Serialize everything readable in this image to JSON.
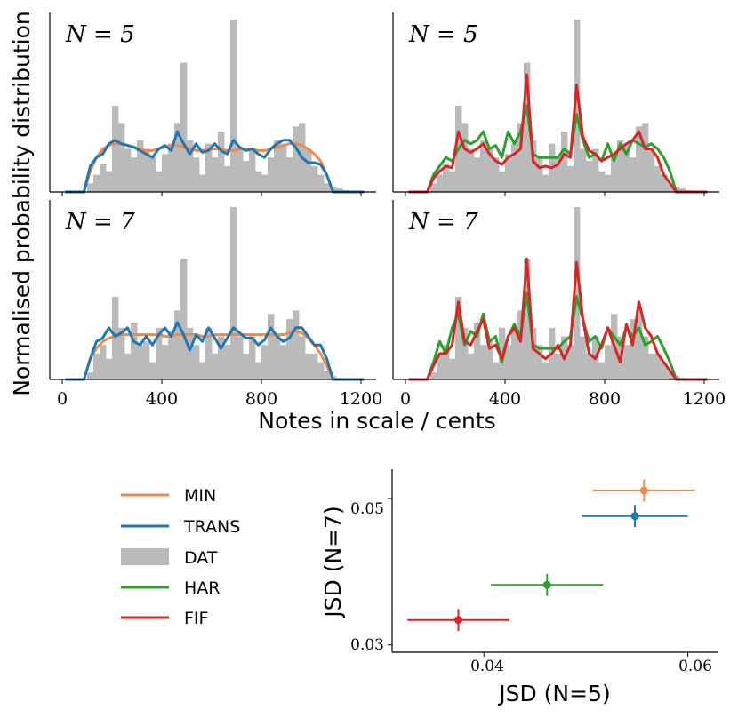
{
  "chart_data": [
    {
      "type": "histogram+line",
      "panel": "top-left",
      "n_label": "N = 5",
      "xlim": [
        -50,
        1250
      ],
      "bins_width": 25,
      "series": [
        "DAT",
        "MIN",
        "TRANS"
      ]
    },
    {
      "type": "histogram+line",
      "panel": "top-right",
      "n_label": "N = 5",
      "xlim": [
        -50,
        1250
      ],
      "series": [
        "DAT",
        "HAR",
        "FIF"
      ]
    },
    {
      "type": "histogram+line",
      "panel": "bottom-left",
      "n_label": "N = 7",
      "xlim": [
        -50,
        1250
      ],
      "series": [
        "DAT",
        "MIN",
        "TRANS"
      ]
    },
    {
      "type": "histogram+line",
      "panel": "bottom-right",
      "n_label": "N = 7",
      "xlim": [
        -50,
        1250
      ],
      "series": [
        "DAT",
        "HAR",
        "FIF"
      ]
    },
    {
      "type": "scatter",
      "panel": "bottom",
      "xlabel": "JSD (N=5)",
      "ylabel": "JSD (N=7)",
      "xlim": [
        0.031,
        0.063
      ],
      "ylim": [
        0.029,
        0.054
      ],
      "xticks": [
        "0.04",
        "0.06"
      ],
      "yticks": [
        "0.03",
        "0.05"
      ],
      "points": [
        {
          "name": "MIN",
          "color": "#f08a4b",
          "x": 0.0557,
          "y": 0.0511,
          "xerr": 0.005,
          "yerr": 0.0015
        },
        {
          "name": "TRANS",
          "color": "#1f77b4",
          "x": 0.0548,
          "y": 0.0476,
          "xerr": 0.0052,
          "yerr": 0.0015
        },
        {
          "name": "HAR",
          "color": "#2ca02c",
          "x": 0.0462,
          "y": 0.0382,
          "xerr": 0.0055,
          "yerr": 0.0015
        },
        {
          "name": "FIF",
          "color": "#d62728",
          "x": 0.0375,
          "y": 0.0334,
          "xerr": 0.005,
          "yerr": 0.0015
        }
      ]
    }
  ],
  "shared": {
    "ylabel": "Normalised probability distribution",
    "xlabel": "Notes in scale / cents",
    "xticks": [
      "0",
      "400",
      "800",
      "1200"
    ],
    "bar_color": "#bababa",
    "series_colors": {
      "MIN": "#f08a4b",
      "TRANS": "#1f77b4",
      "DAT": "#bababa",
      "HAR": "#2ca02c",
      "FIF": "#d62728"
    },
    "dat_n5": [
      0,
      0,
      0,
      0,
      0.05,
      0.1,
      0.16,
      0.12,
      0.5,
      0.4,
      0.25,
      0.2,
      0.3,
      0.25,
      0.2,
      0.12,
      0.22,
      0.28,
      0.4,
      0.75,
      0.3,
      0.2,
      0.1,
      0.28,
      0.2,
      0.35,
      0.15,
      1.0,
      0.25,
      0.18,
      0.25,
      0.12,
      0.1,
      0.2,
      0.3,
      0.28,
      0.2,
      0.38,
      0.4,
      0.25,
      0.15,
      0.1,
      0.05,
      0.03,
      0.02,
      0.01,
      0,
      0,
      0
    ],
    "dat_n7": [
      0,
      0,
      0,
      0,
      0.04,
      0.15,
      0.2,
      0.12,
      0.48,
      0.3,
      0.15,
      0.33,
      0.2,
      0.22,
      0.1,
      0.3,
      0.2,
      0.28,
      0.4,
      0.7,
      0.3,
      0.2,
      0.1,
      0.3,
      0.15,
      0.25,
      0.2,
      1.0,
      0.25,
      0.15,
      0.25,
      0.1,
      0.2,
      0.38,
      0.25,
      0.2,
      0.35,
      0.4,
      0.25,
      0.15,
      0.15,
      0.1,
      0.05,
      0.02,
      0.01,
      0,
      0,
      0,
      0
    ],
    "min_n5": [
      0,
      0,
      0,
      0,
      0.12,
      0.2,
      0.25,
      0.27,
      0.28,
      0.28,
      0.27,
      0.26,
      0.25,
      0.24,
      0.24,
      0.25,
      0.26,
      0.27,
      0.27,
      0.26,
      0.25,
      0.24,
      0.24,
      0.25,
      0.25,
      0.25,
      0.24,
      0.24,
      0.25,
      0.25,
      0.25,
      0.24,
      0.24,
      0.25,
      0.26,
      0.27,
      0.28,
      0.28,
      0.27,
      0.25,
      0.22,
      0.18,
      0.1,
      0,
      0,
      0,
      0,
      0,
      0
    ],
    "trans_n5": [
      0,
      0,
      0,
      0,
      0.15,
      0.2,
      0.22,
      0.28,
      0.3,
      0.28,
      0.27,
      0.26,
      0.24,
      0.22,
      0.2,
      0.25,
      0.27,
      0.24,
      0.35,
      0.28,
      0.22,
      0.28,
      0.23,
      0.24,
      0.28,
      0.24,
      0.22,
      0.3,
      0.26,
      0.24,
      0.25,
      0.22,
      0.2,
      0.25,
      0.28,
      0.3,
      0.3,
      0.26,
      0.2,
      0.17,
      0.17,
      0.16,
      0.1,
      0,
      0,
      0,
      0,
      0,
      0
    ],
    "min_n7": [
      0,
      0,
      0,
      0,
      0.12,
      0.18,
      0.22,
      0.24,
      0.25,
      0.26,
      0.26,
      0.26,
      0.26,
      0.26,
      0.26,
      0.26,
      0.25,
      0.25,
      0.26,
      0.26,
      0.26,
      0.26,
      0.25,
      0.25,
      0.26,
      0.26,
      0.26,
      0.26,
      0.26,
      0.26,
      0.26,
      0.26,
      0.26,
      0.26,
      0.26,
      0.26,
      0.27,
      0.28,
      0.27,
      0.24,
      0.2,
      0.15,
      0.08,
      0,
      0,
      0,
      0,
      0,
      0
    ],
    "trans_n7": [
      0,
      0,
      0,
      0,
      0.12,
      0.22,
      0.24,
      0.3,
      0.25,
      0.27,
      0.3,
      0.22,
      0.2,
      0.25,
      0.2,
      0.26,
      0.3,
      0.25,
      0.33,
      0.26,
      0.17,
      0.26,
      0.22,
      0.3,
      0.24,
      0.18,
      0.24,
      0.3,
      0.27,
      0.24,
      0.24,
      0.2,
      0.23,
      0.3,
      0.25,
      0.22,
      0.24,
      0.3,
      0.3,
      0.25,
      0.2,
      0.2,
      0.12,
      0,
      0,
      0,
      0,
      0,
      0
    ],
    "har_n5": [
      0,
      0,
      0,
      0,
      0.1,
      0.15,
      0.2,
      0.18,
      0.25,
      0.3,
      0.28,
      0.3,
      0.35,
      0.25,
      0.27,
      0.2,
      0.35,
      0.28,
      0.35,
      0.5,
      0.22,
      0.2,
      0.2,
      0.2,
      0.2,
      0.25,
      0.22,
      0.45,
      0.3,
      0.2,
      0.22,
      0.18,
      0.28,
      0.18,
      0.28,
      0.22,
      0.3,
      0.28,
      0.26,
      0.28,
      0.25,
      0.2,
      0.12,
      0,
      0,
      0,
      0,
      0,
      0
    ],
    "fif_n5": [
      0,
      0,
      0,
      0,
      0.08,
      0.12,
      0.15,
      0.14,
      0.35,
      0.25,
      0.23,
      0.25,
      0.28,
      0.22,
      0.18,
      0.16,
      0.2,
      0.22,
      0.25,
      0.68,
      0.18,
      0.14,
      0.15,
      0.14,
      0.16,
      0.22,
      0.2,
      0.62,
      0.32,
      0.24,
      0.22,
      0.18,
      0.2,
      0.22,
      0.25,
      0.28,
      0.3,
      0.35,
      0.25,
      0.25,
      0.2,
      0.1,
      0.05,
      0,
      0,
      0,
      0,
      0,
      0
    ],
    "har_n7": [
      0,
      0,
      0,
      0,
      0.1,
      0.22,
      0.15,
      0.3,
      0.38,
      0.2,
      0.28,
      0.25,
      0.38,
      0.22,
      0.25,
      0.1,
      0.25,
      0.32,
      0.25,
      0.5,
      0.2,
      0.18,
      0.18,
      0.18,
      0.18,
      0.22,
      0.25,
      0.48,
      0.35,
      0.22,
      0.25,
      0.18,
      0.3,
      0.25,
      0.2,
      0.3,
      0.25,
      0.3,
      0.2,
      0.22,
      0.25,
      0.18,
      0.1,
      0,
      0,
      0,
      0,
      0,
      0
    ],
    "fif_n7": [
      0,
      0,
      0,
      0,
      0.08,
      0.15,
      0.15,
      0.2,
      0.45,
      0.22,
      0.2,
      0.28,
      0.35,
      0.18,
      0.2,
      0.12,
      0.25,
      0.3,
      0.22,
      0.7,
      0.18,
      0.15,
      0.12,
      0.15,
      0.2,
      0.12,
      0.2,
      0.68,
      0.35,
      0.15,
      0.12,
      0.2,
      0.3,
      0.2,
      0.1,
      0.32,
      0.2,
      0.45,
      0.3,
      0.25,
      0.15,
      0.1,
      0.05,
      0,
      0,
      0,
      0,
      0,
      0
    ]
  },
  "legend": {
    "items": [
      {
        "label": "MIN",
        "kind": "line",
        "color": "#f08a4b"
      },
      {
        "label": "TRANS",
        "kind": "line",
        "color": "#1f77b4"
      },
      {
        "label": "DAT",
        "kind": "patch",
        "color": "#bababa"
      },
      {
        "label": "HAR",
        "kind": "line",
        "color": "#2ca02c"
      },
      {
        "label": "FIF",
        "kind": "line",
        "color": "#d62728"
      }
    ]
  }
}
